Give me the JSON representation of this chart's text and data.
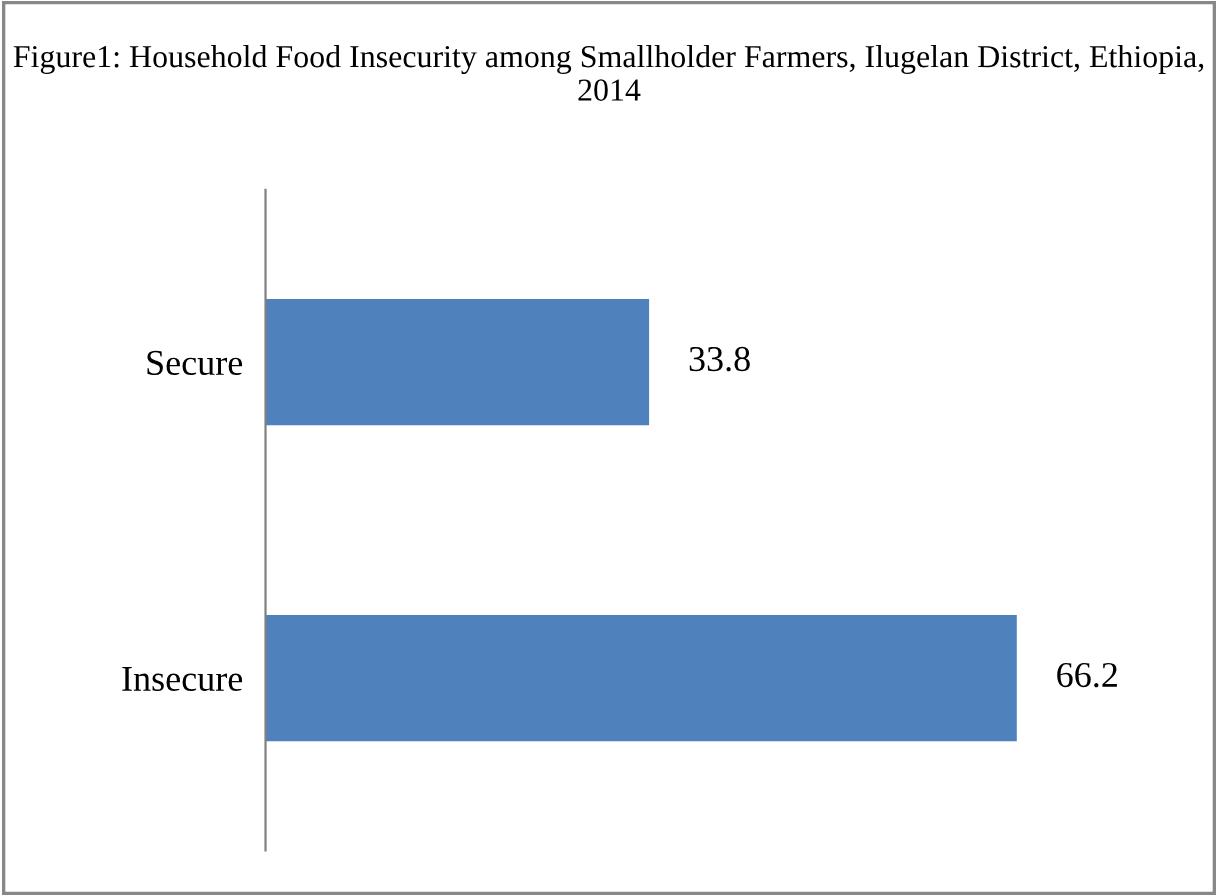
{
  "chart_data": {
    "type": "bar",
    "orientation": "horizontal",
    "title": "Figure1: Household Food Insecurity among Smallholder Farmers, Ilugelan District, Ethiopia, 2014",
    "categories": [
      "Secure",
      "Insecure"
    ],
    "values": [
      33.8,
      66.2
    ],
    "color": "#4f81bd",
    "data_labels": true,
    "tick_labels": "y",
    "grid": false,
    "legend": false
  }
}
